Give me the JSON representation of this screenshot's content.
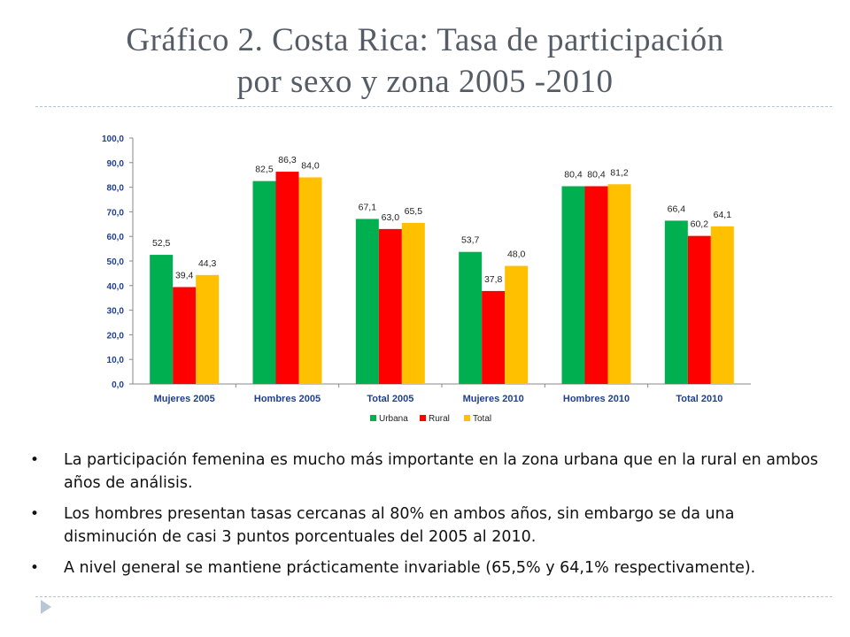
{
  "slide": {
    "title_line1": "Gráfico 2. Costa Rica: Tasa de participación",
    "title_line2": "por sexo y zona 2005 -2010",
    "bullets": [
      "La participación femenina es mucho más importante en la zona urbana que en la rural en ambos años de análisis.",
      "Los hombres presentan tasas cercanas al 80% en ambos años, sin embargo se da una disminución de casi 3 puntos porcentuales del 2005 al 2010.",
      "A nivel general se mantiene prácticamente invariable (65,5% y 64,1% respectivamente)."
    ],
    "bullet_marker": "•",
    "corner_icon": "triangle-arrow-icon"
  },
  "chart_data": {
    "type": "bar",
    "categories": [
      "Mujeres 2005",
      "Hombres 2005",
      "Total 2005",
      "Mujeres 2010",
      "Hombres 2010",
      "Total 2010"
    ],
    "series": [
      {
        "name": "Urbana",
        "color": "#00b050",
        "values": [
          52.5,
          82.5,
          67.1,
          53.7,
          80.4,
          66.4
        ],
        "labels": [
          "52,5",
          "82,5",
          "67,1",
          "53,7",
          "80,4",
          "66,4"
        ]
      },
      {
        "name": "Rural",
        "color": "#ff0000",
        "values": [
          39.4,
          86.3,
          63.0,
          37.8,
          80.4,
          60.2
        ],
        "labels": [
          "39,4",
          "86,3",
          "63,0",
          "37,8",
          "80,4",
          "60,2"
        ]
      },
      {
        "name": "Total",
        "color": "#ffc000",
        "values": [
          44.3,
          84.0,
          65.5,
          48.0,
          81.2,
          64.1
        ],
        "labels": [
          "44,3",
          "84,0",
          "65,5",
          "48,0",
          "81,2",
          "64,1"
        ]
      }
    ],
    "yticks": [
      "0,0",
      "10,0",
      "20,0",
      "30,0",
      "40,0",
      "50,0",
      "60,0",
      "70,0",
      "80,0",
      "90,0",
      "100,0"
    ],
    "ylim": [
      0,
      100
    ],
    "title": "",
    "xlabel": "",
    "ylabel": "",
    "grid": false,
    "legend": "bottom",
    "axis_text_color": "#1f3f8f"
  }
}
